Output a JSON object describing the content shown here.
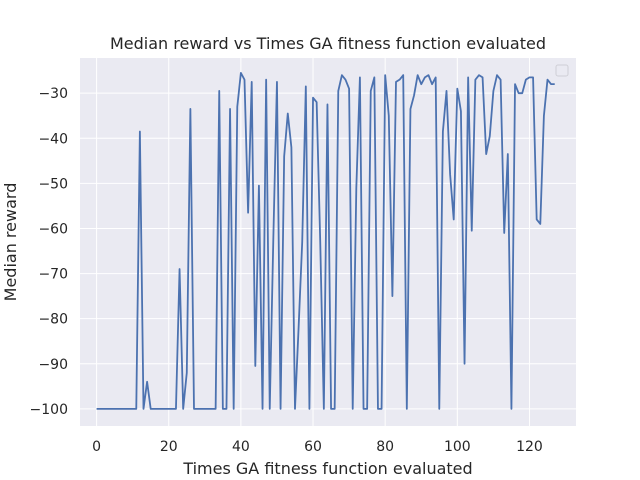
{
  "chart_data": {
    "type": "line",
    "title": "Median reward vs Times GA fitness function evaluated",
    "xlabel": "Times GA fitness function evaluated",
    "ylabel": "Median reward",
    "xlim": [
      -4.6,
      132.9
    ],
    "ylim": [
      -103.8,
      -22.2
    ],
    "xticks": [
      0,
      20,
      40,
      60,
      80,
      100,
      120
    ],
    "yticks": [
      -100,
      -90,
      -80,
      -70,
      -60,
      -50,
      -40,
      -30
    ],
    "xtick_labels": [
      "0",
      "20",
      "40",
      "60",
      "80",
      "100",
      "120"
    ],
    "ytick_labels": [
      "−100",
      "−90",
      "−80",
      "−70",
      "−60",
      "−50",
      "−40",
      "−30"
    ],
    "grid": true,
    "legend": "top-right (empty)",
    "colors": {
      "background": "#eaeaf2",
      "grid": "#ffffff",
      "line": "#4c72b0",
      "text": "#262626"
    },
    "series": [
      {
        "x": [
          0,
          1,
          2,
          3,
          4,
          5,
          6,
          7,
          8,
          9,
          10,
          11,
          12,
          13,
          14,
          15,
          16,
          17,
          18,
          19,
          20,
          21,
          22,
          23,
          24,
          25,
          26,
          27,
          28,
          29,
          30,
          31,
          32,
          33,
          34,
          35,
          36,
          37,
          38,
          39,
          40,
          41,
          42,
          43,
          44,
          45,
          46,
          47,
          48,
          49,
          50,
          51,
          52,
          53,
          54,
          55,
          56,
          57,
          58,
          59,
          60,
          61,
          62,
          63,
          64,
          65,
          66,
          67,
          68,
          69,
          70,
          71,
          72,
          73,
          74,
          75,
          76,
          77,
          78,
          79,
          80,
          81,
          82,
          83,
          84,
          85,
          86,
          87,
          88,
          89,
          90,
          91,
          92,
          93,
          94,
          95,
          96,
          97,
          98,
          99,
          100,
          101,
          102,
          103,
          104,
          105,
          106,
          107,
          108,
          109,
          110,
          111,
          112,
          113,
          114,
          115,
          116,
          117,
          118,
          119,
          120,
          121,
          122,
          123,
          124,
          125,
          126,
          127
        ],
        "values": [
          -100,
          -100,
          -100,
          -100,
          -100,
          -100,
          -100,
          -100,
          -100,
          -100,
          -100,
          -100,
          -38.5,
          -100,
          -94,
          -100,
          -100,
          -100,
          -100,
          -100,
          -100,
          -100,
          -100,
          -69,
          -100,
          -92,
          -33.5,
          -100,
          -100,
          -100,
          -100,
          -100,
          -100,
          -100,
          -29.5,
          -100,
          -100,
          -33.5,
          -100,
          -33,
          -25.5,
          -27,
          -56.5,
          -27.5,
          -90.5,
          -50.5,
          -100,
          -27,
          -100,
          -62,
          -27.5,
          -100,
          -44,
          -34.5,
          -42,
          -100,
          -82,
          -63,
          -28.5,
          -100,
          -31,
          -32,
          -63,
          -100,
          -32.5,
          -100,
          -100,
          -29.5,
          -26,
          -27,
          -29,
          -100,
          -51,
          -26.5,
          -100,
          -100,
          -29.5,
          -26.5,
          -100,
          -100,
          -26,
          -35,
          -75,
          -27.5,
          -27,
          -26,
          -100,
          -33.5,
          -30.5,
          -26,
          -28,
          -26.5,
          -26,
          -28,
          -26.5,
          -100,
          -38.5,
          -29.5,
          -48,
          -58,
          -29,
          -34,
          -90,
          -26.5,
          -60.5,
          -27,
          -26,
          -26.5,
          -43.5,
          -39.5,
          -29.5,
          -26,
          -27,
          -61,
          -43.5,
          -100,
          -28,
          -30,
          -30,
          -27,
          -26.5,
          -26.5,
          -58,
          -59,
          -35,
          -27,
          -28,
          -28
        ]
      }
    ]
  }
}
